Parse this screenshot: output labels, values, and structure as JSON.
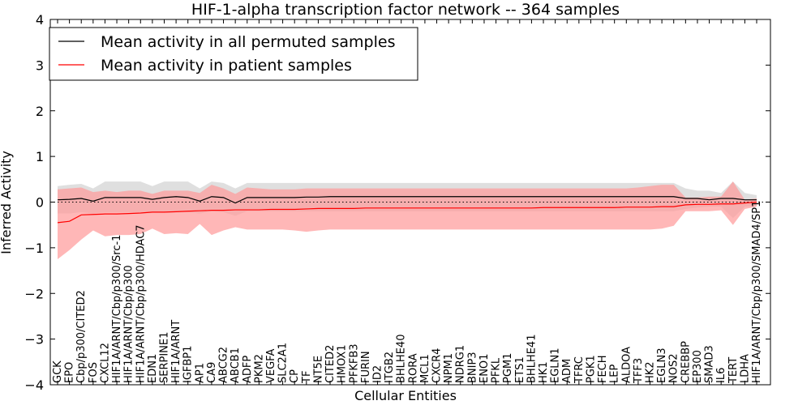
{
  "chart_data": {
    "type": "line",
    "title": "HIF-1-alpha transcription factor network -- 364 samples",
    "xlabel": "Cellular Entities",
    "ylabel": "Inferred Activity",
    "ylim": [
      -4,
      4
    ],
    "yticks": [
      -4,
      -3,
      -2,
      -1,
      0,
      1,
      2,
      3,
      4
    ],
    "ytick_labels": [
      "−4",
      "−3",
      "−2",
      "−1",
      "0",
      "1",
      "2",
      "3",
      "4"
    ],
    "legend_position": "top-left",
    "reference_line": 0,
    "categories": [
      "GCK",
      "EPO",
      "Cbp/p300/CITED2",
      "FOS",
      "CXCL12",
      "HIF1A/ARNT/Cbp/p300/Src-1",
      "HIF1A/ARNT/Cbp/p300",
      "HIF1A/ARNT/Cbp/p300/HDAC7",
      "EDN1",
      "SERPINE1",
      "HIF1A/ARNT",
      "IGFBP1",
      "AP1",
      "CA9",
      "ABCG2",
      "ABCB1",
      "ADFP",
      "PKM2",
      "VEGFA",
      "SLC2A1",
      "CP",
      "TF",
      "NT5E",
      "CITED2",
      "HMOX1",
      "PFKFB3",
      "FURIN",
      "ID2",
      "ITGB2",
      "BHLHE40",
      "RORA",
      "MCL1",
      "CXCR4",
      "NPM1",
      "NDRG1",
      "BNIP3",
      "ENO1",
      "PFKL",
      "PGM1",
      "ETS1",
      "BHLHE41",
      "HK1",
      "EGLN1",
      "ADM",
      "TFRC",
      "PGK1",
      "FECH",
      "LEP",
      "ALDOA",
      "TFF3",
      "HK2",
      "EGLN3",
      "NOS2",
      "CREBBP",
      "EP300",
      "SMAD3",
      "IL6",
      "TERT",
      "LDHA",
      "HIF1A/ARNT/Cbp/p300/SMAD4/SP1"
    ],
    "series": [
      {
        "name": "Mean activity in all permuted samples",
        "color": "#000000",
        "band_color": "#d4d4d4",
        "values": [
          0.05,
          0.06,
          0.08,
          0.02,
          0.1,
          0.1,
          0.1,
          0.1,
          0.06,
          0.1,
          0.12,
          0.1,
          0.02,
          0.12,
          0.1,
          -0.02,
          0.1,
          0.1,
          0.1,
          0.1,
          0.1,
          0.11,
          0.11,
          0.12,
          0.12,
          0.12,
          0.12,
          0.12,
          0.12,
          0.12,
          0.12,
          0.12,
          0.12,
          0.12,
          0.12,
          0.12,
          0.12,
          0.12,
          0.12,
          0.12,
          0.12,
          0.12,
          0.12,
          0.12,
          0.12,
          0.12,
          0.12,
          0.12,
          0.12,
          0.12,
          0.12,
          0.12,
          0.12,
          0.08,
          0.08,
          0.05,
          0.08,
          0.08,
          0.05,
          0.05
        ],
        "upper": [
          0.35,
          0.38,
          0.4,
          0.3,
          0.45,
          0.45,
          0.45,
          0.45,
          0.35,
          0.45,
          0.45,
          0.45,
          0.3,
          0.45,
          0.42,
          0.3,
          0.42,
          0.42,
          0.42,
          0.42,
          0.42,
          0.42,
          0.42,
          0.42,
          0.42,
          0.42,
          0.42,
          0.42,
          0.42,
          0.42,
          0.42,
          0.42,
          0.42,
          0.42,
          0.42,
          0.42,
          0.42,
          0.42,
          0.42,
          0.42,
          0.42,
          0.42,
          0.42,
          0.42,
          0.42,
          0.42,
          0.42,
          0.42,
          0.42,
          0.42,
          0.42,
          0.42,
          0.42,
          0.3,
          0.25,
          0.25,
          0.2,
          0.45,
          0.2,
          0.15
        ],
        "lower": [
          -0.25,
          -0.25,
          -0.22,
          -0.25,
          -0.22,
          -0.22,
          -0.22,
          -0.22,
          -0.22,
          -0.22,
          -0.2,
          -0.22,
          -0.25,
          -0.2,
          -0.22,
          -0.3,
          -0.2,
          -0.2,
          -0.2,
          -0.2,
          -0.2,
          -0.2,
          -0.2,
          -0.2,
          -0.2,
          -0.2,
          -0.2,
          -0.2,
          -0.2,
          -0.2,
          -0.2,
          -0.2,
          -0.2,
          -0.2,
          -0.2,
          -0.2,
          -0.2,
          -0.2,
          -0.2,
          -0.2,
          -0.2,
          -0.2,
          -0.2,
          -0.2,
          -0.2,
          -0.2,
          -0.2,
          -0.2,
          -0.2,
          -0.2,
          -0.2,
          -0.2,
          -0.2,
          -0.15,
          -0.12,
          -0.1,
          -0.1,
          -0.35,
          -0.1,
          -0.08
        ]
      },
      {
        "name": "Mean activity in patient samples",
        "color": "#ff0000",
        "band_color": "#ff9999",
        "values": [
          -0.45,
          -0.42,
          -0.28,
          -0.27,
          -0.26,
          -0.26,
          -0.25,
          -0.24,
          -0.22,
          -0.22,
          -0.21,
          -0.2,
          -0.19,
          -0.18,
          -0.18,
          -0.17,
          -0.17,
          -0.17,
          -0.16,
          -0.16,
          -0.16,
          -0.15,
          -0.14,
          -0.14,
          -0.14,
          -0.14,
          -0.13,
          -0.13,
          -0.13,
          -0.13,
          -0.13,
          -0.13,
          -0.13,
          -0.13,
          -0.13,
          -0.13,
          -0.13,
          -0.13,
          -0.13,
          -0.13,
          -0.13,
          -0.12,
          -0.12,
          -0.12,
          -0.12,
          -0.12,
          -0.12,
          -0.12,
          -0.11,
          -0.11,
          -0.11,
          -0.1,
          -0.1,
          -0.06,
          -0.05,
          -0.05,
          -0.04,
          -0.04,
          -0.02,
          0.0
        ],
        "upper": [
          0.28,
          0.3,
          0.32,
          0.22,
          0.25,
          0.22,
          0.25,
          0.25,
          0.18,
          0.25,
          0.25,
          0.25,
          0.2,
          0.38,
          0.3,
          0.18,
          0.32,
          0.3,
          0.28,
          0.28,
          0.28,
          0.3,
          0.3,
          0.3,
          0.3,
          0.3,
          0.3,
          0.3,
          0.3,
          0.3,
          0.3,
          0.3,
          0.3,
          0.3,
          0.3,
          0.3,
          0.3,
          0.3,
          0.3,
          0.3,
          0.3,
          0.3,
          0.3,
          0.3,
          0.3,
          0.3,
          0.3,
          0.3,
          0.3,
          0.32,
          0.35,
          0.38,
          0.38,
          0.1,
          0.1,
          0.12,
          0.12,
          0.45,
          0.05,
          0.08
        ],
        "lower": [
          -1.25,
          -1.05,
          -0.82,
          -0.62,
          -0.75,
          -0.72,
          -0.72,
          -0.7,
          -0.58,
          -0.7,
          -0.68,
          -0.7,
          -0.48,
          -0.72,
          -0.62,
          -0.55,
          -0.6,
          -0.6,
          -0.6,
          -0.6,
          -0.62,
          -0.65,
          -0.62,
          -0.6,
          -0.6,
          -0.6,
          -0.6,
          -0.6,
          -0.6,
          -0.6,
          -0.6,
          -0.6,
          -0.6,
          -0.6,
          -0.6,
          -0.6,
          -0.6,
          -0.6,
          -0.6,
          -0.6,
          -0.6,
          -0.6,
          -0.6,
          -0.6,
          -0.6,
          -0.6,
          -0.6,
          -0.6,
          -0.6,
          -0.6,
          -0.6,
          -0.58,
          -0.52,
          -0.2,
          -0.2,
          -0.2,
          -0.18,
          -0.5,
          -0.15,
          -0.1
        ]
      }
    ]
  }
}
